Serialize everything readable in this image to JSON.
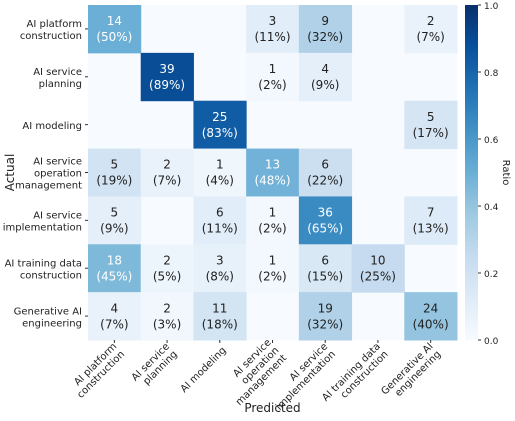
{
  "chart_data": {
    "type": "heatmap",
    "x_label": "Predicted",
    "y_label": "Actual",
    "colorbar_label": "Ratio",
    "colormap": "Blues",
    "columns": [
      "AI platform\nconstruction",
      "AI service\nplanning",
      "AI modeling",
      "AI service\noperation\nmanagement",
      "AI service\nimplementation",
      "AI training data\nconstruction",
      "Generative AI\nengineering"
    ],
    "rows": [
      "AI platform\nconstruction",
      "AI service\nplanning",
      "AI modeling",
      "AI service\noperation\nmanagement",
      "AI service\nimplementation",
      "AI training data\nconstruction",
      "Generative AI\nengineering"
    ],
    "counts": [
      [
        14,
        null,
        null,
        3,
        9,
        null,
        2
      ],
      [
        null,
        39,
        null,
        1,
        4,
        null,
        null
      ],
      [
        null,
        null,
        25,
        null,
        null,
        null,
        5
      ],
      [
        5,
        2,
        1,
        13,
        6,
        null,
        null
      ],
      [
        5,
        null,
        6,
        1,
        36,
        null,
        7
      ],
      [
        18,
        2,
        3,
        1,
        6,
        10,
        null
      ],
      [
        4,
        2,
        11,
        null,
        19,
        null,
        24
      ]
    ],
    "ratios": [
      [
        0.5,
        null,
        null,
        0.11,
        0.32,
        null,
        0.07
      ],
      [
        null,
        0.89,
        null,
        0.02,
        0.09,
        null,
        null
      ],
      [
        null,
        null,
        0.83,
        null,
        null,
        null,
        0.17
      ],
      [
        0.19,
        0.07,
        0.04,
        0.48,
        0.22,
        null,
        null
      ],
      [
        0.09,
        null,
        0.11,
        0.02,
        0.65,
        null,
        0.13
      ],
      [
        0.45,
        0.05,
        0.08,
        0.02,
        0.15,
        0.25,
        null
      ],
      [
        0.07,
        0.03,
        0.18,
        null,
        0.32,
        null,
        0.4
      ]
    ],
    "ratio_labels": [
      [
        "(50%)",
        null,
        null,
        "(11%)",
        "(32%)",
        null,
        "(7%)"
      ],
      [
        null,
        "(89%)",
        null,
        "(2%)",
        "(9%)",
        null,
        null
      ],
      [
        null,
        null,
        "(83%)",
        null,
        null,
        null,
        "(17%)"
      ],
      [
        "(19%)",
        "(7%)",
        "(4%)",
        "(48%)",
        "(22%)",
        null,
        null
      ],
      [
        "(9%)",
        null,
        "(11%)",
        "(2%)",
        "(65%)",
        null,
        "(13%)"
      ],
      [
        "(45%)",
        "(5%)",
        "(8%)",
        "(2%)",
        "(15%)",
        "(25%)",
        null
      ],
      [
        "(7%)",
        "(3%)",
        "(18%)",
        null,
        "(32%)",
        null,
        "(40%)"
      ]
    ],
    "clim": [
      0,
      1
    ],
    "cticks": [
      {
        "value": 0,
        "label": "0.0"
      },
      {
        "value": 0.2,
        "label": "0.2"
      },
      {
        "value": 0.4,
        "label": "0.4"
      },
      {
        "value": 0.6,
        "label": "0.6"
      },
      {
        "value": 0.8,
        "label": "0.8"
      },
      {
        "value": 1,
        "label": "1.0"
      }
    ]
  }
}
